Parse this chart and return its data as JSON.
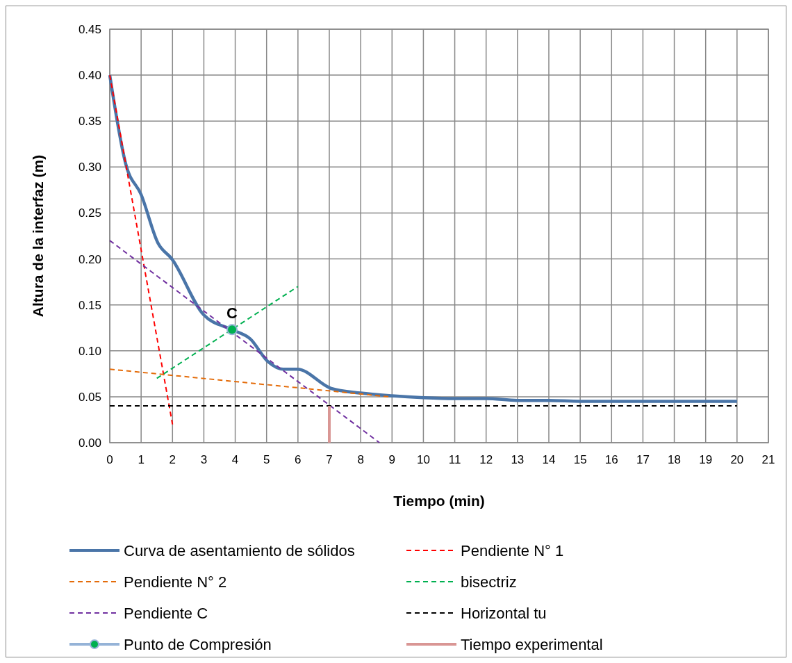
{
  "chart_data": {
    "type": "line",
    "xlabel": "Tiempo (min)",
    "ylabel": "Altura de la interfaz (m)",
    "xlim": [
      0,
      21
    ],
    "xticks": [
      0,
      1,
      2,
      3,
      4,
      5,
      6,
      7,
      8,
      9,
      10,
      11,
      12,
      13,
      14,
      15,
      16,
      17,
      18,
      19,
      20,
      21
    ],
    "ylim": [
      0,
      0.45
    ],
    "yticks": [
      {
        "value": 0,
        "label": "0.00"
      },
      {
        "value": 0.05,
        "label": "0.05"
      },
      {
        "value": 0.1,
        "label": "0.10"
      },
      {
        "value": 0.15,
        "label": "0.15"
      },
      {
        "value": 0.2,
        "label": "0.20"
      },
      {
        "value": 0.25,
        "label": "0.25"
      },
      {
        "value": 0.3,
        "label": "0.30"
      },
      {
        "value": 0.35,
        "label": "0.35"
      },
      {
        "value": 0.4,
        "label": "0.40"
      },
      {
        "value": 0.45,
        "label": "0.45"
      }
    ],
    "grid": true,
    "legend": "bottom",
    "series": [
      {
        "name": "Curva de asentamiento de sólidos",
        "color": "#4a75a8",
        "line_style": "solid",
        "x": [
          0,
          0.52,
          1,
          1.54,
          1.98,
          3,
          3.9,
          4.48,
          5.05,
          5.53,
          5.98,
          7.06,
          8,
          9,
          10,
          11,
          12,
          13,
          14,
          15,
          16,
          17,
          18,
          19,
          20
        ],
        "values": [
          0.4,
          0.302,
          0.27,
          0.217,
          0.2,
          0.139,
          0.123,
          0.113,
          0.088,
          0.08,
          0.08,
          0.059,
          0.054,
          0.051,
          0.049,
          0.048,
          0.048,
          0.046,
          0.046,
          0.045,
          0.045,
          0.045,
          0.045,
          0.045,
          0.045
        ]
      },
      {
        "name": "Pendiente N° 1",
        "color": "#ff0000",
        "line_style": "dashed",
        "x": [
          0,
          2
        ],
        "values": [
          0.4,
          0.02
        ]
      },
      {
        "name": "Pendiente N° 2",
        "color": "#e46c0a",
        "line_style": "dashed",
        "x": [
          0,
          8.9
        ],
        "values": [
          0.08,
          0.05
        ]
      },
      {
        "name": "bisectriz",
        "color": "#00b050",
        "line_style": "dashed",
        "x": [
          1.5,
          6
        ],
        "values": [
          0.07,
          0.17
        ]
      },
      {
        "name": "Pendiente C",
        "color": "#7030a0",
        "line_style": "dashed",
        "x": [
          0,
          8.6
        ],
        "values": [
          0.22,
          0
        ]
      },
      {
        "name": "Horizontal tu",
        "color": "#000000",
        "line_style": "dashed",
        "x": [
          0,
          20
        ],
        "values": [
          0.04,
          0.04
        ]
      },
      {
        "name": "Punto de Compresión",
        "color": "#00b050",
        "type": "scatter",
        "marker": "circle",
        "x": [
          3.9
        ],
        "values": [
          0.123
        ]
      },
      {
        "name": "Tiempo experimental",
        "color": "#d99694",
        "line_style": "solid",
        "x": [
          7,
          7
        ],
        "values": [
          0,
          0.04
        ]
      }
    ],
    "annotations": [
      {
        "text": "C",
        "x": 3.9,
        "y": 0.123
      }
    ]
  }
}
